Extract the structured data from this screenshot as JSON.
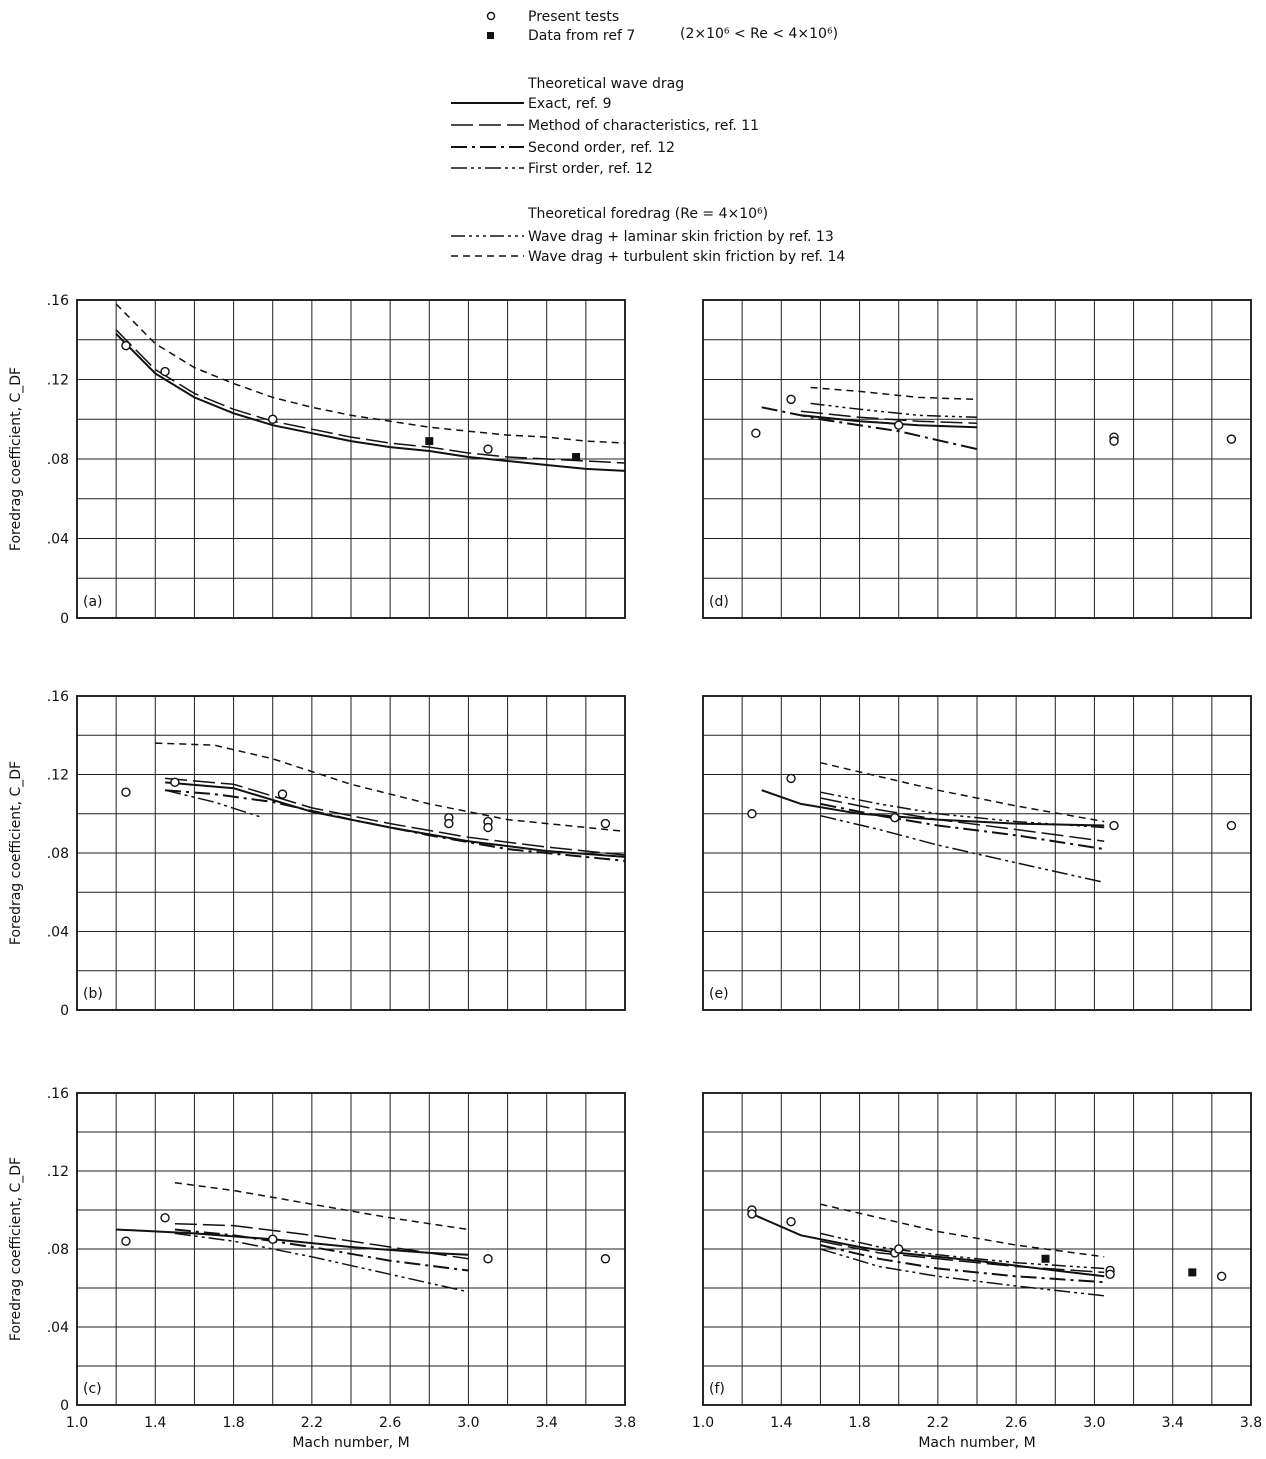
{
  "legend": {
    "markers": [
      {
        "symbol": "open-circle",
        "label": "Present tests",
        "note": ""
      },
      {
        "symbol": "filled-square",
        "label": "Data from ref 7",
        "note": "(2×10⁶ < Re < 4×10⁶)"
      }
    ],
    "wave_drag_heading": "Theoretical wave drag",
    "wave_drag_items": [
      {
        "label": "Exact, ref. 9",
        "dash": ""
      },
      {
        "label": "Method of characteristics, ref. 11",
        "dash": "22,6"
      },
      {
        "label": "Second order, ref. 12",
        "dash": "16,5,3,5"
      },
      {
        "label": "First order, ref. 12",
        "dash": "16,4,3,4,3,4"
      }
    ],
    "foredrag_heading": "Theoretical foredrag (Re = 4×10⁶)",
    "foredrag_items": [
      {
        "label": "Wave drag + laminar skin friction by ref. 13",
        "dash": "14,4,3,4,3,4,3,4"
      },
      {
        "label": "Wave drag + turbulent skin friction by ref. 14",
        "dash": "7,5"
      }
    ]
  },
  "axes": {
    "ylabel": "Foredrag coefficient, C_DF",
    "xlabel": "Mach number, M",
    "y_ticks": [
      "0",
      ".04",
      ".08",
      ".12",
      ".16"
    ],
    "x_ticks": [
      "1.0",
      "1.4",
      "1.8",
      "2.2",
      "2.6",
      "3.0",
      "3.4",
      "3.8"
    ]
  },
  "chart_data": [
    {
      "type": "line",
      "panel": "(a)",
      "xlim": [
        1.0,
        3.8
      ],
      "ylim": [
        0,
        0.16
      ],
      "series": [
        {
          "name": "Exact, ref. 9",
          "x": [
            1.2,
            1.4,
            1.6,
            1.8,
            2.0,
            2.2,
            2.4,
            2.6,
            2.8,
            3.0,
            3.2,
            3.4,
            3.6,
            3.8
          ],
          "y": [
            0.143,
            0.123,
            0.111,
            0.103,
            0.097,
            0.093,
            0.089,
            0.086,
            0.084,
            0.081,
            0.079,
            0.077,
            0.075,
            0.074
          ]
        },
        {
          "name": "Method of characteristics, ref. 11",
          "x": [
            1.2,
            1.4,
            1.6,
            1.8,
            2.0,
            2.2,
            2.4,
            2.6,
            2.8,
            3.0,
            3.2,
            3.4,
            3.6,
            3.8
          ],
          "y": [
            0.145,
            0.125,
            0.113,
            0.105,
            0.099,
            0.095,
            0.091,
            0.088,
            0.086,
            0.083,
            0.081,
            0.08,
            0.079,
            0.078
          ]
        },
        {
          "name": "Wave drag + turbulent skin friction by ref. 14",
          "x": [
            1.2,
            1.4,
            1.6,
            1.8,
            2.0,
            2.2,
            2.4,
            2.6,
            2.8,
            3.0,
            3.2,
            3.4,
            3.6,
            3.8
          ],
          "y": [
            0.158,
            0.138,
            0.126,
            0.118,
            0.111,
            0.106,
            0.102,
            0.099,
            0.096,
            0.094,
            0.092,
            0.091,
            0.089,
            0.088
          ]
        },
        {
          "name": "Present tests",
          "marker": "open-circle",
          "x": [
            1.25,
            1.45,
            2.0,
            3.1
          ],
          "y": [
            0.137,
            0.124,
            0.1,
            0.085
          ]
        },
        {
          "name": "Data from ref 7",
          "marker": "filled-square",
          "x": [
            2.8,
            3.55
          ],
          "y": [
            0.089,
            0.081
          ]
        }
      ]
    },
    {
      "type": "line",
      "panel": "(b)",
      "xlim": [
        1.0,
        3.8
      ],
      "ylim": [
        0,
        0.16
      ],
      "series": [
        {
          "name": "Exact, ref. 9",
          "x": [
            1.45,
            1.8,
            2.2,
            2.6,
            3.0,
            3.4,
            3.8
          ],
          "y": [
            0.116,
            0.113,
            0.101,
            0.093,
            0.086,
            0.081,
            0.078
          ]
        },
        {
          "name": "Method of characteristics, ref. 11",
          "x": [
            1.45,
            1.8,
            2.2,
            2.6,
            3.0,
            3.4,
            3.8
          ],
          "y": [
            0.118,
            0.115,
            0.103,
            0.095,
            0.088,
            0.083,
            0.079
          ]
        },
        {
          "name": "Second order, ref. 12",
          "x": [
            1.45,
            1.7,
            2.0,
            2.4,
            2.8,
            3.2,
            3.8
          ],
          "y": [
            0.112,
            0.11,
            0.106,
            0.097,
            0.089,
            0.082,
            0.076
          ]
        },
        {
          "name": "First order, ref. 12",
          "x": [
            1.45,
            1.7,
            1.95
          ],
          "y": [
            0.112,
            0.106,
            0.098
          ]
        },
        {
          "name": "Wave drag + turbulent skin friction by ref. 14",
          "x": [
            1.4,
            1.7,
            2.0,
            2.4,
            2.8,
            3.2,
            3.8
          ],
          "y": [
            0.136,
            0.135,
            0.128,
            0.115,
            0.105,
            0.097,
            0.091
          ]
        },
        {
          "name": "Present tests",
          "marker": "open-circle",
          "x": [
            1.25,
            1.5,
            2.05,
            2.9,
            2.9,
            3.1,
            3.1,
            3.7
          ],
          "y": [
            0.111,
            0.116,
            0.11,
            0.098,
            0.095,
            0.096,
            0.093,
            0.095
          ]
        }
      ]
    },
    {
      "type": "line",
      "panel": "(c)",
      "xlim": [
        1.0,
        3.8
      ],
      "ylim": [
        0,
        0.16
      ],
      "series": [
        {
          "name": "Exact, ref. 9",
          "x": [
            1.2,
            1.6,
            2.0,
            2.4,
            2.8,
            3.0
          ],
          "y": [
            0.09,
            0.088,
            0.085,
            0.081,
            0.078,
            0.077
          ]
        },
        {
          "name": "Method of characteristics, ref. 11",
          "x": [
            1.5,
            1.8,
            2.2,
            2.6,
            3.0
          ],
          "y": [
            0.093,
            0.092,
            0.087,
            0.081,
            0.075
          ]
        },
        {
          "name": "Second order, ref. 12",
          "x": [
            1.5,
            1.8,
            2.2,
            2.6,
            3.0
          ],
          "y": [
            0.09,
            0.087,
            0.081,
            0.074,
            0.069
          ]
        },
        {
          "name": "First order, ref. 12",
          "x": [
            1.5,
            1.8,
            2.2,
            2.6,
            3.0
          ],
          "y": [
            0.088,
            0.084,
            0.076,
            0.067,
            0.058
          ]
        },
        {
          "name": "Wave drag + turbulent skin friction by ref. 14",
          "x": [
            1.5,
            1.8,
            2.2,
            2.6,
            3.0
          ],
          "y": [
            0.114,
            0.11,
            0.103,
            0.096,
            0.09
          ]
        },
        {
          "name": "Present tests",
          "marker": "open-circle",
          "x": [
            1.25,
            1.45,
            2.0,
            3.1,
            3.7
          ],
          "y": [
            0.084,
            0.096,
            0.085,
            0.075,
            0.075
          ]
        }
      ]
    },
    {
      "type": "line",
      "panel": "(d)",
      "xlim": [
        1.0,
        3.8
      ],
      "ylim": [
        0,
        0.16
      ],
      "series": [
        {
          "name": "Exact, ref. 9",
          "x": [
            1.5,
            1.8,
            2.1,
            2.4
          ],
          "y": [
            0.102,
            0.099,
            0.097,
            0.096
          ]
        },
        {
          "name": "Method of characteristics, ref. 11",
          "x": [
            1.5,
            1.8,
            2.1,
            2.4
          ],
          "y": [
            0.104,
            0.101,
            0.099,
            0.098
          ]
        },
        {
          "name": "Second order, ref. 12",
          "x": [
            1.3,
            1.6,
            2.0,
            2.4
          ],
          "y": [
            0.106,
            0.1,
            0.094,
            0.085
          ]
        },
        {
          "name": "Wave drag + laminar skin friction by ref. 13",
          "x": [
            1.55,
            1.8,
            2.1,
            2.4
          ],
          "y": [
            0.108,
            0.105,
            0.102,
            0.101
          ]
        },
        {
          "name": "Wave drag + turbulent skin friction by ref. 14",
          "x": [
            1.55,
            1.8,
            2.1,
            2.4
          ],
          "y": [
            0.116,
            0.114,
            0.111,
            0.11
          ]
        },
        {
          "name": "Present tests",
          "marker": "open-circle",
          "x": [
            1.27,
            1.45,
            2.0,
            3.1,
            3.1,
            3.7
          ],
          "y": [
            0.093,
            0.11,
            0.097,
            0.091,
            0.089,
            0.09
          ]
        }
      ]
    },
    {
      "type": "line",
      "panel": "(e)",
      "xlim": [
        1.0,
        3.8
      ],
      "ylim": [
        0,
        0.16
      ],
      "series": [
        {
          "name": "Exact, ref. 9",
          "x": [
            1.3,
            1.5,
            1.8,
            2.2,
            2.6,
            3.05
          ],
          "y": [
            0.112,
            0.105,
            0.1,
            0.097,
            0.095,
            0.094
          ]
        },
        {
          "name": "Method of characteristics, ref. 11",
          "x": [
            1.6,
            1.9,
            2.2,
            2.6,
            3.05
          ],
          "y": [
            0.108,
            0.102,
            0.097,
            0.092,
            0.086
          ]
        },
        {
          "name": "Second order, ref. 12",
          "x": [
            1.6,
            1.9,
            2.2,
            2.6,
            3.05
          ],
          "y": [
            0.105,
            0.099,
            0.094,
            0.089,
            0.082
          ]
        },
        {
          "name": "First order, ref. 12",
          "x": [
            1.6,
            1.9,
            2.2,
            2.6,
            3.05
          ],
          "y": [
            0.099,
            0.092,
            0.084,
            0.075,
            0.065
          ]
        },
        {
          "name": "Wave drag + laminar skin friction by ref. 13",
          "x": [
            1.6,
            1.9,
            2.2,
            2.6,
            3.05
          ],
          "y": [
            0.111,
            0.105,
            0.1,
            0.096,
            0.093
          ]
        },
        {
          "name": "Wave drag + turbulent skin friction by ref. 14",
          "x": [
            1.6,
            1.9,
            2.2,
            2.6,
            3.05
          ],
          "y": [
            0.126,
            0.119,
            0.112,
            0.104,
            0.096
          ]
        },
        {
          "name": "Present tests",
          "marker": "open-circle",
          "x": [
            1.25,
            1.45,
            1.98,
            3.1,
            3.7
          ],
          "y": [
            0.1,
            0.118,
            0.098,
            0.094,
            0.094
          ]
        }
      ]
    },
    {
      "type": "line",
      "panel": "(f)",
      "xlim": [
        1.0,
        3.8
      ],
      "ylim": [
        0,
        0.16
      ],
      "series": [
        {
          "name": "Exact, ref. 9",
          "x": [
            1.25,
            1.5,
            1.8,
            2.0,
            2.4,
            2.8,
            3.05
          ],
          "y": [
            0.098,
            0.087,
            0.081,
            0.078,
            0.074,
            0.069,
            0.066
          ]
        },
        {
          "name": "Method of characteristics, ref. 11",
          "x": [
            1.6,
            1.9,
            2.2,
            2.6,
            3.05
          ],
          "y": [
            0.084,
            0.078,
            0.075,
            0.071,
            0.068
          ]
        },
        {
          "name": "Second order, ref. 12",
          "x": [
            1.6,
            1.9,
            2.2,
            2.6,
            3.05
          ],
          "y": [
            0.082,
            0.075,
            0.07,
            0.066,
            0.063
          ]
        },
        {
          "name": "First order, ref. 12",
          "x": [
            1.6,
            1.9,
            2.2,
            2.6,
            3.05
          ],
          "y": [
            0.08,
            0.071,
            0.066,
            0.061,
            0.056
          ]
        },
        {
          "name": "Wave drag + laminar skin friction by ref. 13",
          "x": [
            1.6,
            1.9,
            2.2,
            2.6,
            3.05
          ],
          "y": [
            0.088,
            0.081,
            0.077,
            0.073,
            0.07
          ]
        },
        {
          "name": "Wave drag + turbulent skin friction by ref. 14",
          "x": [
            1.6,
            1.9,
            2.2,
            2.6,
            3.05
          ],
          "y": [
            0.103,
            0.096,
            0.089,
            0.082,
            0.076
          ]
        },
        {
          "name": "Present tests",
          "marker": "open-circle",
          "x": [
            1.25,
            1.25,
            1.45,
            1.98,
            2.0,
            3.08,
            3.08,
            3.65
          ],
          "y": [
            0.1,
            0.098,
            0.094,
            0.078,
            0.08,
            0.069,
            0.067,
            0.066
          ]
        },
        {
          "name": "Data from ref 7",
          "marker": "filled-square",
          "x": [
            2.75,
            3.5
          ],
          "y": [
            0.075,
            0.068
          ]
        }
      ]
    }
  ]
}
